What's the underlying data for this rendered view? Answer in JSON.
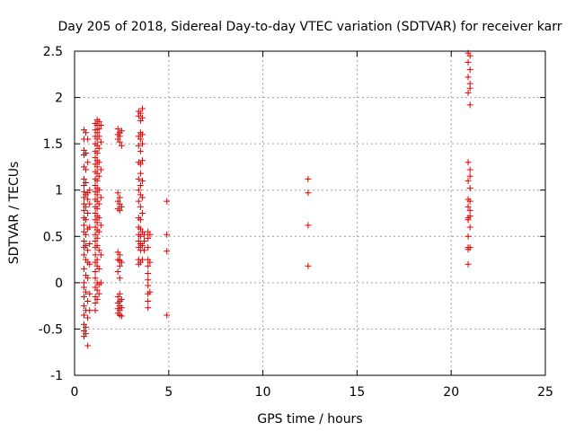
{
  "chart_data": {
    "type": "scatter",
    "title": "Day 205 of 2018, Sidereal Day-to-day VTEC variation (SDTVAR) for receiver karr",
    "xlabel": "GPS time / hours",
    "ylabel": "SDTVAR / TECUs",
    "xlim": [
      0,
      25
    ],
    "ylim": [
      -1,
      2.5
    ],
    "xticks": [
      0,
      5,
      10,
      15,
      20,
      25
    ],
    "xtick_labels": [
      "0",
      "5",
      "10",
      "15",
      "20",
      "25"
    ],
    "yticks": [
      -1,
      -0.5,
      0,
      0.5,
      1,
      1.5,
      2,
      2.5
    ],
    "ytick_labels": [
      "-1",
      "-0.5",
      "0",
      "0.5",
      "1",
      "1.5",
      "2",
      "2.5"
    ],
    "grid": true,
    "marker": "+",
    "marker_color": "#dd0000",
    "series": [
      {
        "name": "SDTVAR",
        "points": [
          [
            0.5,
            1.65
          ],
          [
            0.5,
            1.55
          ],
          [
            0.5,
            1.43
          ],
          [
            0.5,
            1.38
          ],
          [
            0.5,
            1.25
          ],
          [
            0.5,
            1.12
          ],
          [
            0.5,
            1.05
          ],
          [
            0.5,
            0.98
          ],
          [
            0.5,
            0.92
          ],
          [
            0.5,
            0.85
          ],
          [
            0.5,
            0.78
          ],
          [
            0.5,
            0.7
          ],
          [
            0.5,
            0.62
          ],
          [
            0.5,
            0.55
          ],
          [
            0.5,
            0.45
          ],
          [
            0.5,
            0.38
          ],
          [
            0.5,
            0.3
          ],
          [
            0.5,
            0.15
          ],
          [
            0.5,
            0.0
          ],
          [
            0.5,
            -0.05
          ],
          [
            0.5,
            -0.15
          ],
          [
            0.5,
            -0.25
          ],
          [
            0.5,
            -0.35
          ],
          [
            0.5,
            -0.45
          ],
          [
            0.5,
            -0.52
          ],
          [
            0.5,
            -0.58
          ],
          [
            0.6,
            1.62
          ],
          [
            0.6,
            1.4
          ],
          [
            0.6,
            1.22
          ],
          [
            0.6,
            1.08
          ],
          [
            0.6,
            0.95
          ],
          [
            0.6,
            0.82
          ],
          [
            0.6,
            0.68
          ],
          [
            0.6,
            0.52
          ],
          [
            0.6,
            0.4
          ],
          [
            0.6,
            0.25
          ],
          [
            0.6,
            0.08
          ],
          [
            0.6,
            -0.1
          ],
          [
            0.6,
            -0.3
          ],
          [
            0.6,
            -0.48
          ],
          [
            0.6,
            -0.55
          ],
          [
            0.7,
            1.55
          ],
          [
            0.7,
            1.3
          ],
          [
            0.7,
            0.97
          ],
          [
            0.7,
            0.9
          ],
          [
            0.7,
            0.75
          ],
          [
            0.7,
            0.58
          ],
          [
            0.7,
            0.35
          ],
          [
            0.7,
            0.22
          ],
          [
            0.7,
            0.05
          ],
          [
            0.7,
            -0.2
          ],
          [
            0.7,
            -0.38
          ],
          [
            0.7,
            -0.68
          ],
          [
            0.8,
            1.0
          ],
          [
            0.8,
            0.85
          ],
          [
            0.8,
            0.6
          ],
          [
            0.8,
            0.42
          ],
          [
            0.8,
            0.2
          ],
          [
            0.8,
            -0.12
          ],
          [
            0.8,
            -0.3
          ],
          [
            1.1,
            1.72
          ],
          [
            1.1,
            1.65
          ],
          [
            1.1,
            1.58
          ],
          [
            1.1,
            1.5
          ],
          [
            1.1,
            1.42
          ],
          [
            1.1,
            1.35
          ],
          [
            1.1,
            1.28
          ],
          [
            1.1,
            1.2
          ],
          [
            1.1,
            1.12
          ],
          [
            1.1,
            1.05
          ],
          [
            1.1,
            0.98
          ],
          [
            1.1,
            0.9
          ],
          [
            1.1,
            0.82
          ],
          [
            1.1,
            0.75
          ],
          [
            1.1,
            0.68
          ],
          [
            1.1,
            0.6
          ],
          [
            1.1,
            0.52
          ],
          [
            1.1,
            0.45
          ],
          [
            1.1,
            0.38
          ],
          [
            1.1,
            0.3
          ],
          [
            1.1,
            0.22
          ],
          [
            1.1,
            0.12
          ],
          [
            1.1,
            0.05
          ],
          [
            1.1,
            -0.05
          ],
          [
            1.1,
            -0.15
          ],
          [
            1.1,
            -0.22
          ],
          [
            1.1,
            -0.3
          ],
          [
            1.2,
            1.76
          ],
          [
            1.2,
            1.7
          ],
          [
            1.2,
            1.62
          ],
          [
            1.2,
            1.55
          ],
          [
            1.2,
            1.48
          ],
          [
            1.2,
            1.4
          ],
          [
            1.2,
            1.32
          ],
          [
            1.2,
            1.25
          ],
          [
            1.2,
            1.18
          ],
          [
            1.2,
            1.1
          ],
          [
            1.2,
            1.02
          ],
          [
            1.2,
            0.95
          ],
          [
            1.2,
            0.88
          ],
          [
            1.2,
            0.8
          ],
          [
            1.2,
            0.72
          ],
          [
            1.2,
            0.65
          ],
          [
            1.2,
            0.57
          ],
          [
            1.2,
            0.48
          ],
          [
            1.2,
            0.4
          ],
          [
            1.2,
            0.25
          ],
          [
            1.2,
            0.18
          ],
          [
            1.2,
            0.0
          ],
          [
            1.2,
            -0.08
          ],
          [
            1.2,
            -0.18
          ],
          [
            1.3,
            1.74
          ],
          [
            1.3,
            1.66
          ],
          [
            1.3,
            1.58
          ],
          [
            1.3,
            1.45
          ],
          [
            1.3,
            1.3
          ],
          [
            1.3,
            1.15
          ],
          [
            1.3,
            1.0
          ],
          [
            1.3,
            0.85
          ],
          [
            1.3,
            0.7
          ],
          [
            1.3,
            0.55
          ],
          [
            1.3,
            0.35
          ],
          [
            1.3,
            0.15
          ],
          [
            1.3,
            -0.02
          ],
          [
            1.3,
            -0.12
          ],
          [
            1.4,
            1.7
          ],
          [
            1.4,
            1.52
          ],
          [
            1.4,
            1.22
          ],
          [
            1.4,
            0.92
          ],
          [
            1.4,
            0.62
          ],
          [
            1.4,
            0.3
          ],
          [
            1.4,
            0.0
          ],
          [
            2.3,
            1.66
          ],
          [
            2.3,
            1.6
          ],
          [
            2.3,
            1.55
          ],
          [
            2.3,
            0.97
          ],
          [
            2.3,
            0.88
          ],
          [
            2.3,
            0.8
          ],
          [
            2.3,
            0.33
          ],
          [
            2.3,
            0.25
          ],
          [
            2.3,
            0.12
          ],
          [
            2.3,
            -0.15
          ],
          [
            2.3,
            -0.22
          ],
          [
            2.3,
            -0.28
          ],
          [
            2.3,
            -0.33
          ],
          [
            2.4,
            1.62
          ],
          [
            2.4,
            1.58
          ],
          [
            2.4,
            1.52
          ],
          [
            2.4,
            0.92
          ],
          [
            2.4,
            0.85
          ],
          [
            2.4,
            0.78
          ],
          [
            2.4,
            0.3
          ],
          [
            2.4,
            0.24
          ],
          [
            2.4,
            0.18
          ],
          [
            2.4,
            0.05
          ],
          [
            2.4,
            -0.12
          ],
          [
            2.4,
            -0.2
          ],
          [
            2.4,
            -0.25
          ],
          [
            2.4,
            -0.3
          ],
          [
            2.4,
            -0.35
          ],
          [
            2.5,
            1.64
          ],
          [
            2.5,
            1.48
          ],
          [
            2.5,
            0.82
          ],
          [
            2.5,
            0.22
          ],
          [
            2.5,
            -0.18
          ],
          [
            2.5,
            -0.27
          ],
          [
            2.5,
            -0.36
          ],
          [
            3.4,
            1.85
          ],
          [
            3.4,
            1.8
          ],
          [
            3.4,
            1.58
          ],
          [
            3.4,
            1.48
          ],
          [
            3.4,
            1.3
          ],
          [
            3.4,
            1.12
          ],
          [
            3.4,
            1.0
          ],
          [
            3.4,
            0.88
          ],
          [
            3.4,
            0.7
          ],
          [
            3.4,
            0.6
          ],
          [
            3.4,
            0.52
          ],
          [
            3.4,
            0.45
          ],
          [
            3.4,
            0.38
          ],
          [
            3.4,
            0.25
          ],
          [
            3.4,
            0.2
          ],
          [
            3.5,
            1.83
          ],
          [
            3.5,
            1.75
          ],
          [
            3.5,
            1.62
          ],
          [
            3.5,
            1.55
          ],
          [
            3.5,
            1.42
          ],
          [
            3.5,
            1.28
          ],
          [
            3.5,
            1.18
          ],
          [
            3.5,
            1.05
          ],
          [
            3.5,
            0.95
          ],
          [
            3.5,
            0.82
          ],
          [
            3.5,
            0.68
          ],
          [
            3.5,
            0.58
          ],
          [
            3.5,
            0.5
          ],
          [
            3.5,
            0.42
          ],
          [
            3.5,
            0.35
          ],
          [
            3.5,
            0.22
          ],
          [
            3.6,
            1.88
          ],
          [
            3.6,
            1.78
          ],
          [
            3.6,
            1.6
          ],
          [
            3.6,
            1.5
          ],
          [
            3.6,
            1.32
          ],
          [
            3.6,
            1.1
          ],
          [
            3.6,
            0.92
          ],
          [
            3.6,
            0.75
          ],
          [
            3.6,
            0.55
          ],
          [
            3.6,
            0.4
          ],
          [
            3.6,
            0.25
          ],
          [
            3.7,
            0.52
          ],
          [
            3.7,
            0.45
          ],
          [
            3.7,
            0.35
          ],
          [
            3.9,
            0.55
          ],
          [
            3.9,
            0.48
          ],
          [
            3.9,
            0.38
          ],
          [
            3.9,
            0.25
          ],
          [
            3.9,
            0.18
          ],
          [
            3.9,
            0.1
          ],
          [
            3.9,
            0.03
          ],
          [
            3.9,
            -0.03
          ],
          [
            3.9,
            -0.12
          ],
          [
            3.9,
            -0.2
          ],
          [
            3.9,
            -0.27
          ],
          [
            4.0,
            0.52
          ],
          [
            4.0,
            0.22
          ],
          [
            4.0,
            -0.1
          ],
          [
            4.9,
            0.88
          ],
          [
            4.9,
            0.52
          ],
          [
            4.9,
            0.34
          ],
          [
            4.9,
            -0.35
          ],
          [
            12.4,
            1.12
          ],
          [
            12.4,
            0.97
          ],
          [
            12.4,
            0.62
          ],
          [
            12.4,
            0.18
          ],
          [
            20.9,
            2.48
          ],
          [
            20.9,
            2.38
          ],
          [
            20.9,
            2.22
          ],
          [
            20.9,
            2.05
          ],
          [
            20.9,
            1.3
          ],
          [
            20.9,
            1.1
          ],
          [
            20.9,
            0.9
          ],
          [
            20.9,
            0.82
          ],
          [
            20.9,
            0.7
          ],
          [
            20.9,
            0.68
          ],
          [
            20.9,
            0.5
          ],
          [
            20.9,
            0.38
          ],
          [
            20.9,
            0.36
          ],
          [
            20.9,
            0.2
          ],
          [
            21.0,
            2.45
          ],
          [
            21.0,
            2.3
          ],
          [
            21.0,
            2.15
          ],
          [
            21.0,
            2.1
          ],
          [
            21.0,
            1.92
          ],
          [
            21.0,
            1.22
          ],
          [
            21.0,
            1.15
          ],
          [
            21.0,
            1.02
          ],
          [
            21.0,
            0.88
          ],
          [
            21.0,
            0.78
          ],
          [
            21.0,
            0.72
          ],
          [
            21.0,
            0.6
          ],
          [
            21.0,
            0.38
          ]
        ]
      }
    ]
  }
}
